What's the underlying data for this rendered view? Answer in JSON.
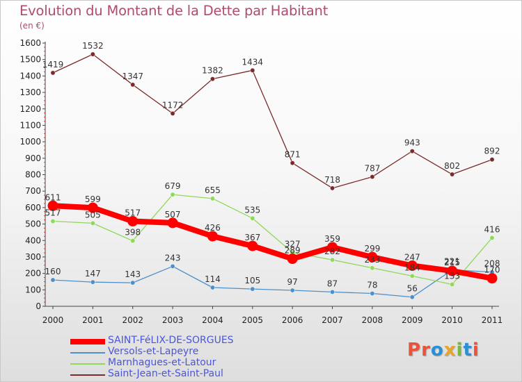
{
  "title": "Evolution du Montant de la Dette par Habitant",
  "subtitle": "(en €)",
  "logo_text": "Proxiti",
  "logo_colors": [
    "#e8553a",
    "#e8553a",
    "#2a8fd6",
    "#e8a52a",
    "#7ab83a",
    "#2a8fd6",
    "#e8553a"
  ],
  "chart_data": {
    "type": "line",
    "x": [
      "2000",
      "2001",
      "2002",
      "2003",
      "2004",
      "2005",
      "2006",
      "2007",
      "2008",
      "2009",
      "2010",
      "2011"
    ],
    "ylim": [
      0,
      1600
    ],
    "yticks": [
      0,
      100,
      200,
      300,
      400,
      500,
      600,
      700,
      800,
      900,
      1000,
      1100,
      1200,
      1300,
      1400,
      1500,
      1600
    ],
    "grid": false,
    "legend_position": "bottom-left",
    "series": [
      {
        "name": "SAINT-FéLIX-DE-SORGUES",
        "color": "#ff0000",
        "emphasis": true,
        "values": [
          611,
          599,
          517,
          507,
          426,
          367,
          289,
          359,
          299,
          247,
          215,
          170
        ]
      },
      {
        "name": "Versols-et-Lapeyre",
        "color": "#4d8fc8",
        "emphasis": false,
        "values": [
          160,
          147,
          143,
          243,
          114,
          105,
          97,
          87,
          78,
          56,
          221,
          208
        ]
      },
      {
        "name": "Marnhagues-et-Latour",
        "color": "#8fd85a",
        "emphasis": false,
        "values": [
          517,
          505,
          398,
          679,
          655,
          535,
          327,
          282,
          233,
          184,
          133,
          416
        ]
      },
      {
        "name": "Saint-Jean-et-Saint-Paul",
        "color": "#7a2a2a",
        "emphasis": false,
        "values": [
          1419,
          1532,
          1347,
          1172,
          1382,
          1434,
          871,
          718,
          787,
          943,
          802,
          892
        ]
      }
    ]
  }
}
